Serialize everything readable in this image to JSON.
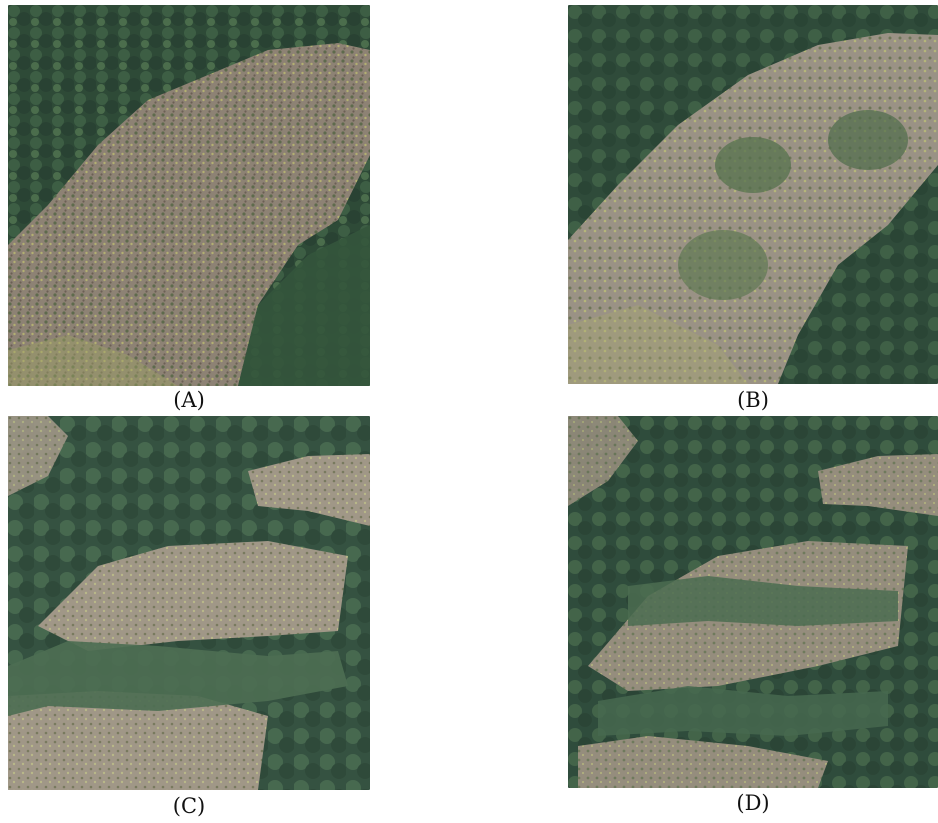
{
  "figure": {
    "panels": [
      {
        "id": "a",
        "caption": "(A)"
      },
      {
        "id": "b",
        "caption": "(B)"
      },
      {
        "id": "c",
        "caption": "(C)"
      },
      {
        "id": "d",
        "caption": "(D)"
      }
    ]
  },
  "colors": {
    "forest_dark": "#2d4a38",
    "forest_mid": "#3f5f45",
    "forest_light": "#5b7a4e",
    "slope_brown": "#8a7f72",
    "slope_light": "#a79f92",
    "grass_yellow": "#b8bd6a"
  }
}
